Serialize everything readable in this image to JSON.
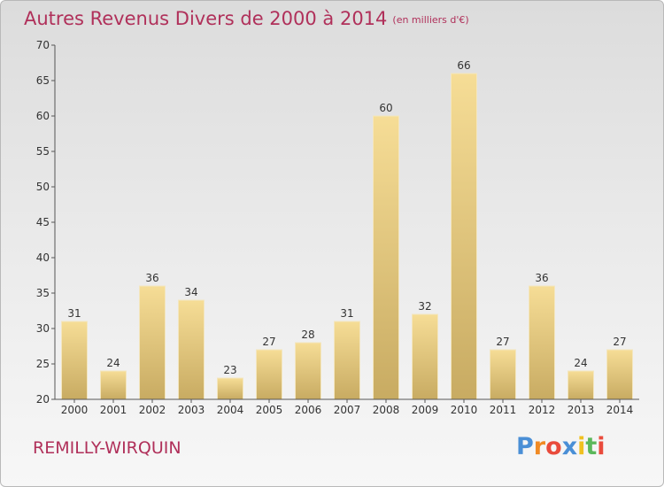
{
  "title": "Autres Revenus Divers de 2000 à 2014",
  "subtitle": "(en milliers d'€)",
  "location": "REMILLY-WIRQUIN",
  "logo": {
    "letters": [
      "P",
      "r",
      "o",
      "x",
      "i",
      "t",
      "i"
    ],
    "colors": [
      "#4a8fd6",
      "#f08a24",
      "#e94b3c",
      "#4a8fd6",
      "#f0c020",
      "#5bb85b",
      "#e94b3c"
    ]
  },
  "colors": {
    "bar_light": "#f6dd96",
    "bar_dark": "#c8ab62",
    "axis": "#555555",
    "title": "#b0305a"
  },
  "chart_data": {
    "type": "bar",
    "categories": [
      "2000",
      "2001",
      "2002",
      "2003",
      "2004",
      "2005",
      "2006",
      "2007",
      "2008",
      "2009",
      "2010",
      "2011",
      "2012",
      "2013",
      "2014"
    ],
    "values": [
      31,
      24,
      36,
      34,
      23,
      27,
      28,
      31,
      60,
      32,
      66,
      27,
      36,
      24,
      27
    ],
    "value_labels": [
      "31",
      "24",
      "36",
      "34",
      "23",
      "27",
      "28",
      "31",
      "60",
      "32",
      "66",
      "27",
      "36",
      "24",
      "27"
    ],
    "yticks": [
      "20",
      "25",
      "30",
      "35",
      "40",
      "45",
      "50",
      "55",
      "60",
      "65",
      "70"
    ],
    "ylim": [
      20,
      70
    ],
    "grid": false,
    "xlabel": "",
    "ylabel": ""
  }
}
